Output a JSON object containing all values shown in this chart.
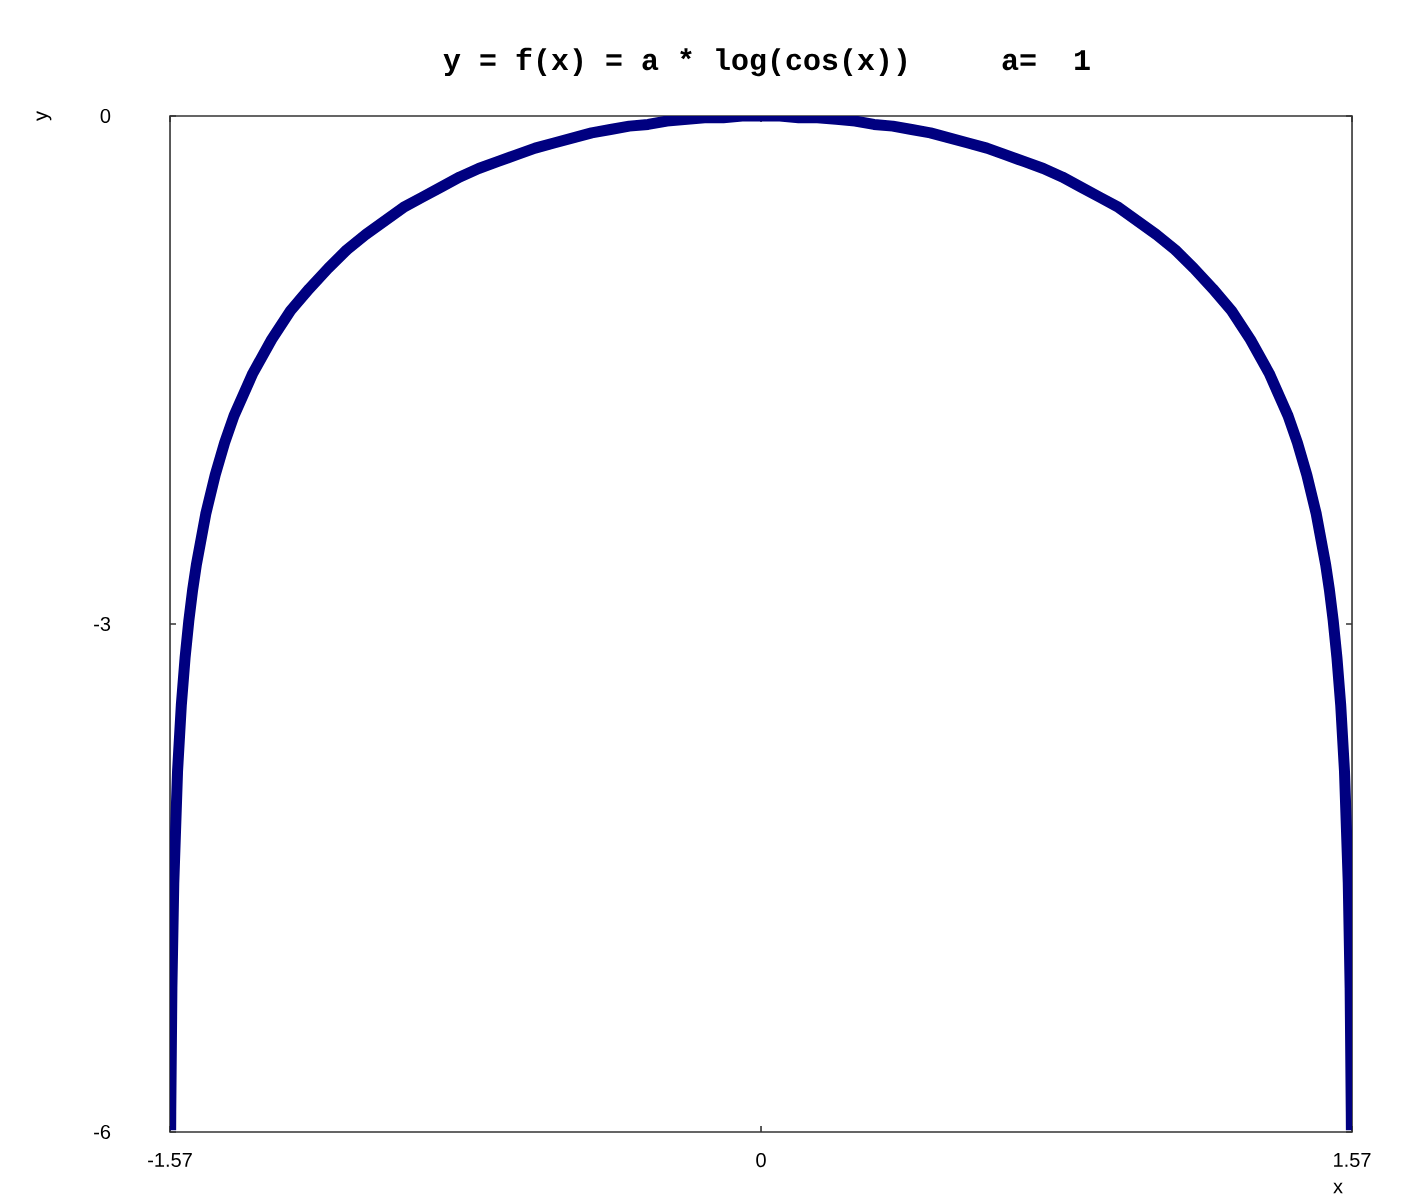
{
  "chart_data": {
    "type": "line",
    "title": "y = f(x) = a * log(cos(x))     a=  1",
    "xlabel": "x",
    "ylabel": "y",
    "x": [
      -1.5683,
      -1.568,
      -1.565,
      -1.56,
      -1.55,
      -1.54,
      -1.53,
      -1.52,
      -1.51,
      -1.5,
      -1.475,
      -1.45,
      -1.425,
      -1.4,
      -1.35,
      -1.3,
      -1.25,
      -1.2,
      -1.15,
      -1.1,
      -1.05,
      -1.0,
      -0.95,
      -0.9,
      -0.85,
      -0.8,
      -0.75,
      -0.7,
      -0.65,
      -0.6,
      -0.55,
      -0.5,
      -0.45,
      -0.4,
      -0.35,
      -0.3,
      -0.25,
      -0.2,
      -0.15,
      -0.1,
      -0.05,
      0,
      0.05,
      0.1,
      0.15,
      0.2,
      0.25,
      0.3,
      0.35,
      0.4,
      0.45,
      0.5,
      0.55,
      0.6,
      0.65,
      0.7,
      0.75,
      0.8,
      0.85,
      0.9,
      0.95,
      1.0,
      1.05,
      1.1,
      1.15,
      1.2,
      1.25,
      1.3,
      1.35,
      1.4,
      1.425,
      1.45,
      1.475,
      1.5,
      1.51,
      1.52,
      1.53,
      1.54,
      1.55,
      1.56,
      1.565,
      1.568,
      1.5683
    ],
    "series": [
      {
        "color": "#000080",
        "values": [
          -5.99,
          -5.88,
          -5.15,
          -4.53,
          -3.87,
          -3.48,
          -3.2,
          -2.98,
          -2.8,
          -2.65,
          -2.35,
          -2.12,
          -1.93,
          -1.77,
          -1.52,
          -1.32,
          -1.15,
          -1.02,
          -0.9,
          -0.79,
          -0.7,
          -0.62,
          -0.54,
          -0.48,
          -0.42,
          -0.36,
          -0.31,
          -0.27,
          -0.23,
          -0.19,
          -0.16,
          -0.13,
          -0.1,
          -0.08,
          -0.06,
          -0.05,
          -0.03,
          -0.02,
          -0.01,
          -0.01,
          0,
          0,
          0,
          -0.01,
          -0.01,
          -0.02,
          -0.03,
          -0.05,
          -0.06,
          -0.08,
          -0.1,
          -0.13,
          -0.16,
          -0.19,
          -0.23,
          -0.27,
          -0.31,
          -0.36,
          -0.42,
          -0.48,
          -0.54,
          -0.62,
          -0.7,
          -0.79,
          -0.9,
          -1.02,
          -1.15,
          -1.32,
          -1.52,
          -1.77,
          -1.93,
          -2.12,
          -2.35,
          -2.65,
          -2.8,
          -2.98,
          -3.2,
          -3.48,
          -3.87,
          -4.53,
          -5.15,
          -5.88,
          -5.99
        ]
      }
    ],
    "xlim": [
      -1.57,
      1.57
    ],
    "ylim": [
      -6,
      0
    ],
    "xticks": [
      -1.57,
      0,
      1.57
    ],
    "yticks": [
      -6,
      -3,
      0
    ],
    "marker": "none",
    "line_style": "solid"
  }
}
